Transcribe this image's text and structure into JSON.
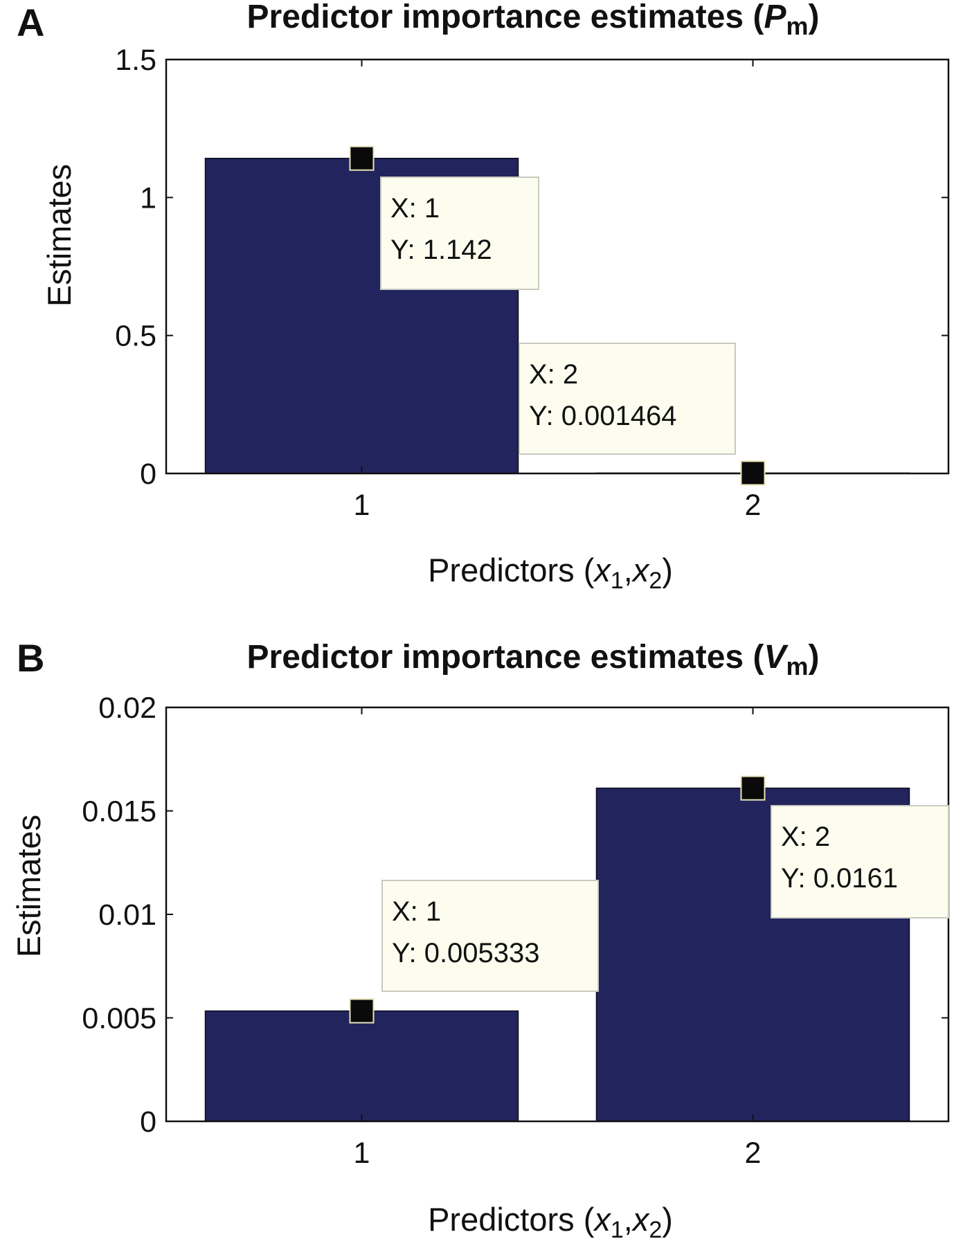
{
  "colors": {
    "bar": "#22245e",
    "marker": "#0a0a0a",
    "tooltip_bg": "#fdfdef",
    "tooltip_border": "#c9c9c0",
    "axis": "#111111"
  },
  "chart_data": [
    {
      "panel": "A",
      "type": "bar",
      "title": "Predictor importance estimates (",
      "title_symbol": "P",
      "title_subscript": "m",
      "title_close": ")",
      "xlabel": "Predictors (",
      "xlabel_var1": "x",
      "xlabel_sub1": "1",
      "xlabel_sep": ",",
      "xlabel_var2": "x",
      "xlabel_sub2": "2",
      "xlabel_close": ")",
      "ylabel": "Estimates",
      "categories": [
        "1",
        "2"
      ],
      "x": [
        1,
        2
      ],
      "values": [
        1.142,
        0.001464
      ],
      "ylim": [
        0,
        1.5
      ],
      "yticks": [
        "0",
        "0.5",
        "1",
        "1.5"
      ],
      "yticks_values": [
        0,
        0.5,
        1,
        1.5
      ],
      "grid": false,
      "datatips": [
        {
          "x_text": "X: 1",
          "y_text": "Y: 1.142"
        },
        {
          "x_text": "X: 2",
          "y_text": "Y: 0.001464"
        }
      ]
    },
    {
      "panel": "B",
      "type": "bar",
      "title": "Predictor importance estimates (",
      "title_symbol": "V",
      "title_subscript": "m",
      "title_close": ")",
      "xlabel": "Predictors (",
      "xlabel_var1": "x",
      "xlabel_sub1": "1",
      "xlabel_sep": ",",
      "xlabel_var2": "x",
      "xlabel_sub2": "2",
      "xlabel_close": ")",
      "ylabel": "Estimates",
      "categories": [
        "1",
        "2"
      ],
      "x": [
        1,
        2
      ],
      "values": [
        0.005333,
        0.0161
      ],
      "ylim": [
        0,
        0.02
      ],
      "yticks": [
        "0",
        "0.005",
        "0.01",
        "0.015",
        "0.02"
      ],
      "yticks_values": [
        0,
        0.005,
        0.01,
        0.015,
        0.02
      ],
      "grid": false,
      "datatips": [
        {
          "x_text": "X: 1",
          "y_text": "Y: 0.005333"
        },
        {
          "x_text": "X: 2",
          "y_text": "Y: 0.0161"
        }
      ]
    }
  ]
}
